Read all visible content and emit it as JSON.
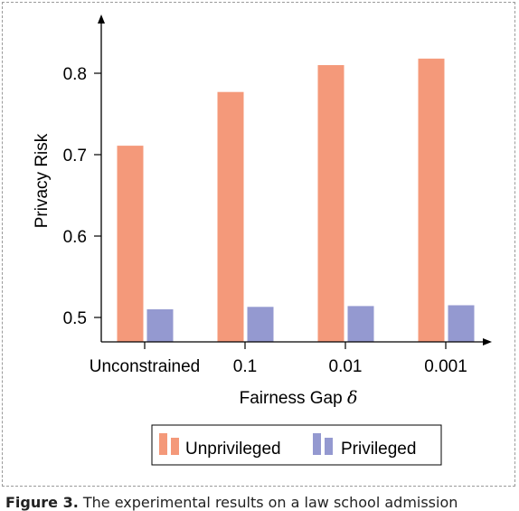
{
  "chart_data": {
    "type": "bar",
    "categories": [
      "Unconstrained",
      "0.1",
      "0.01",
      "0.001"
    ],
    "series": [
      {
        "name": "Unprivileged",
        "color": "#f4997a",
        "values": [
          0.711,
          0.777,
          0.81,
          0.818
        ]
      },
      {
        "name": "Privileged",
        "color": "#9499d0",
        "values": [
          0.51,
          0.513,
          0.514,
          0.515
        ]
      }
    ],
    "xlabel": "Fairness Gap",
    "xlabel_symbol": "δ",
    "ylabel": "Privacy Risk",
    "ylim": [
      0.47,
      0.87
    ],
    "yticks": [
      "0.5",
      "0.6",
      "0.7",
      "0.8"
    ],
    "legend_position": "bottom-center",
    "grid": false
  },
  "caption": {
    "label": "Figure 3.",
    "text": "The experimental results on a law school admission"
  }
}
